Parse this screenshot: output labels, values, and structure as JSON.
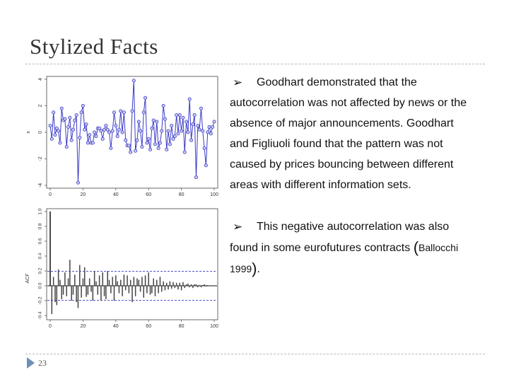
{
  "slide": {
    "title": "Stylized Facts",
    "number": "23"
  },
  "bullets": [
    {
      "text": "Goodhart demonstrated that the autocorrelation was not affected by news or the absence of major announcements. Goodhart and Figliuoli found that the pattern was not caused by prices bouncing between different areas with different information sets."
    },
    {
      "text_before_ref": "This negative autocorrelation was also found in some eurofutures contracts ",
      "ref_open": "(",
      "ref_text": "Ballocchi 1999",
      "ref_close": ")",
      "text_after": "."
    }
  ],
  "chart_data": [
    {
      "type": "line",
      "ylabel": "x",
      "xlim": [
        0,
        100
      ],
      "ylim": [
        -4,
        4
      ],
      "xticks": [
        "0",
        "20",
        "40",
        "60",
        "80",
        "100"
      ],
      "yticks": [
        "-4",
        "-2",
        "0",
        "2",
        "4"
      ],
      "series": [
        {
          "color": "#3a3ac8",
          "values": [
            0.5,
            -0.5,
            1.5,
            -0.2,
            0.3,
            0.1,
            -0.8,
            1.8,
            0.9,
            1.0,
            -1.1,
            0.4,
            1.1,
            -0.6,
            0.2,
            0.9,
            1.3,
            -3.8,
            -0.4,
            1.5,
            2.0,
            0.2,
            0.6,
            -0.8,
            -0.2,
            -0.8,
            -0.8,
            0.0,
            -0.3,
            0.3,
            0.3,
            0.1,
            -0.5,
            0.2,
            0.5,
            0.2,
            0.0,
            -1.2,
            0.1,
            1.5,
            0.5,
            -0.3,
            0.2,
            1.6,
            0.0,
            1.5,
            -0.6,
            -1.0,
            -1.0,
            -1.5,
            1.6,
            3.9,
            -1.4,
            -0.6,
            0.8,
            0.1,
            -1.1,
            1.5,
            2.6,
            -0.8,
            -0.5,
            -1.3,
            0.3,
            0.9,
            -0.9,
            0.8,
            -1.2,
            -0.8,
            0.1,
            2.0,
            1.0,
            -1.3,
            0.1,
            -0.9,
            0.5,
            -0.5,
            -0.3,
            1.3,
            -0.1,
            1.3,
            0.1,
            1.1,
            -1.5,
            0.8,
            0.0,
            2.5,
            -0.6,
            0.6,
            1.3,
            -3.4,
            0.5,
            0.2,
            1.8,
            0.1,
            -1.2,
            -2.5,
            0.0,
            0.4,
            -0.1,
            0.4,
            0.8
          ]
        }
      ]
    },
    {
      "type": "bar",
      "ylabel": "ACF",
      "xlim": [
        0,
        100
      ],
      "ylim": [
        -0.4,
        1.0
      ],
      "xticks": [
        "0",
        "20",
        "40",
        "60",
        "80",
        "100"
      ],
      "yticks": [
        "-0.4",
        "-0.2",
        "0.0",
        "0.2",
        "0.4",
        "0.6",
        "0.8",
        "1.0"
      ],
      "confidence_band": 0.195,
      "lags": [
        0,
        1,
        2,
        3,
        4,
        5,
        6,
        7,
        8,
        9,
        10,
        11,
        12,
        13,
        14,
        15,
        16,
        17,
        18,
        19,
        20,
        21,
        22,
        23,
        24,
        25,
        26,
        27,
        28,
        29,
        30,
        31,
        32,
        33,
        34,
        35,
        36,
        37,
        38,
        39,
        40,
        41,
        42,
        43,
        44,
        45,
        46,
        47,
        48,
        49,
        50,
        51,
        52,
        53,
        54,
        55,
        56,
        57,
        58,
        59,
        60,
        61,
        62,
        63,
        64,
        65,
        66,
        67,
        68,
        69,
        70,
        71,
        72,
        73,
        74,
        75,
        76,
        77,
        78,
        79,
        80,
        81,
        82,
        83,
        84,
        85,
        86,
        87,
        88,
        89,
        90,
        91,
        92,
        93,
        94,
        95,
        96
      ],
      "values": [
        1.0,
        -0.38,
        0.12,
        -0.22,
        -0.26,
        0.22,
        0.08,
        -0.18,
        -0.12,
        0.18,
        -0.14,
        0.1,
        0.35,
        -0.2,
        -0.12,
        0.15,
        -0.22,
        -0.3,
        0.28,
        -0.16,
        0.1,
        0.25,
        -0.15,
        -0.12,
        0.1,
        -0.08,
        -0.2,
        0.2,
        0.06,
        -0.12,
        0.14,
        -0.2,
        0.18,
        -0.14,
        -0.18,
        0.2,
        0.08,
        -0.1,
        0.12,
        -0.2,
        0.14,
        0.06,
        -0.1,
        0.08,
        -0.14,
        0.15,
        -0.06,
        0.14,
        -0.1,
        0.08,
        -0.22,
        0.12,
        -0.14,
        0.1,
        0.08,
        -0.08,
        0.12,
        -0.16,
        0.14,
        -0.1,
        0.18,
        -0.12,
        -0.1,
        0.1,
        -0.14,
        0.08,
        -0.1,
        0.12,
        -0.08,
        0.06,
        -0.06,
        0.04,
        -0.05,
        0.06,
        -0.04,
        0.05,
        -0.03,
        0.04,
        -0.05,
        0.04,
        -0.06,
        0.05,
        -0.03,
        0.02,
        0.03,
        -0.02,
        0.02,
        -0.03,
        0.02,
        0.02,
        -0.02,
        0.01,
        -0.02,
        0.01,
        0.02,
        -0.01,
        0.01
      ]
    }
  ]
}
